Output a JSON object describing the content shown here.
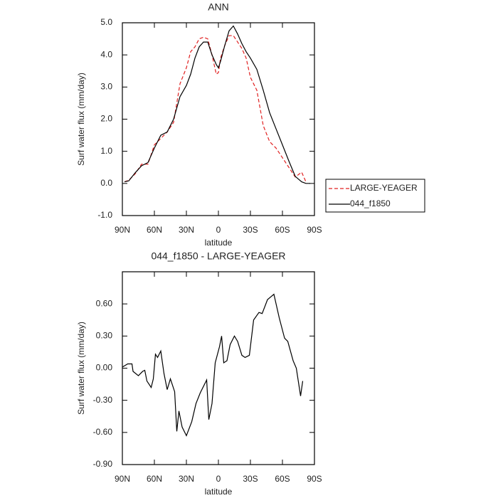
{
  "chart_data": [
    {
      "type": "line",
      "title": "ANN",
      "xlabel": "latitude",
      "ylabel": "Surf water flux (mm/day)",
      "x": [
        88,
        84,
        78,
        72,
        66,
        60,
        54,
        48,
        42,
        36,
        30,
        26,
        22,
        18,
        14,
        10,
        6,
        2,
        0,
        -2,
        -6,
        -10,
        -14,
        -18,
        -22,
        -26,
        -30,
        -36,
        -42,
        -48,
        -54,
        -60,
        -66,
        -72,
        -78,
        -82,
        -86
      ],
      "series": [
        {
          "name": "LARGE-YEAGER",
          "color": "#e02020",
          "dash": true,
          "values": [
            0.05,
            0.1,
            0.3,
            0.6,
            0.6,
            1.2,
            1.4,
            1.6,
            1.9,
            3.1,
            3.6,
            4.1,
            4.25,
            4.5,
            4.55,
            4.5,
            4.0,
            3.4,
            3.45,
            3.9,
            4.3,
            4.6,
            4.6,
            4.4,
            4.2,
            3.9,
            3.3,
            2.9,
            1.8,
            1.3,
            1.1,
            0.8,
            0.5,
            0.2,
            0.35,
            0.05,
            null
          ]
        },
        {
          "name": "044_f1850",
          "color": "#000000",
          "dash": false,
          "values": [
            0.05,
            0.08,
            0.33,
            0.55,
            0.65,
            1.1,
            1.5,
            1.6,
            2.0,
            2.7,
            3.05,
            3.4,
            3.9,
            4.25,
            4.4,
            4.4,
            4.0,
            3.7,
            3.6,
            3.8,
            4.3,
            4.75,
            4.9,
            4.65,
            4.35,
            4.1,
            3.9,
            3.55,
            2.9,
            2.2,
            1.7,
            1.2,
            0.7,
            0.22,
            0.05,
            0.0,
            0.0
          ]
        }
      ],
      "xlim": [
        90,
        -90
      ],
      "xticks": [
        {
          "value": 90,
          "label": "90N"
        },
        {
          "value": 60,
          "label": "60N"
        },
        {
          "value": 30,
          "label": "30N"
        },
        0,
        {
          "value": -30,
          "label": "30S"
        },
        {
          "value": -60,
          "label": "60S"
        },
        {
          "value": -90,
          "label": "90S"
        }
      ],
      "ylim": [
        -1,
        5
      ],
      "yticks": [
        {
          "value": -1,
          "label": "-1.0"
        },
        {
          "value": 0,
          "label": "0.0"
        },
        {
          "value": 1,
          "label": "1.0"
        },
        {
          "value": 2,
          "label": "2.0"
        },
        {
          "value": 3,
          "label": "3.0"
        },
        {
          "value": 4,
          "label": "4.0"
        },
        {
          "value": 5,
          "label": "5.0"
        }
      ],
      "legend": "right"
    },
    {
      "type": "line",
      "title": "044_f1850 - LARGE-YEAGER",
      "xlabel": "latitude",
      "ylabel": "Surf water flux (mm/day)",
      "x": [
        90,
        85,
        81,
        80,
        75,
        71,
        69,
        67,
        63,
        61,
        59,
        57,
        54,
        51,
        48,
        45,
        41,
        39,
        37,
        34,
        30,
        25,
        21,
        17,
        11,
        9,
        6,
        3,
        -1,
        -3,
        -5,
        -8,
        -11,
        -15,
        -18,
        -22,
        -25,
        -29,
        -33,
        -38,
        -41,
        -46,
        -52,
        -57,
        -62,
        -65,
        -70,
        -73,
        -77,
        -79
      ],
      "color": "#000000",
      "values": [
        0.01,
        0.04,
        0.04,
        -0.03,
        -0.07,
        -0.03,
        -0.02,
        -0.12,
        -0.18,
        -0.1,
        0.13,
        0.1,
        0.16,
        -0.05,
        -0.2,
        -0.1,
        -0.22,
        -0.59,
        -0.4,
        -0.55,
        -0.63,
        -0.5,
        -0.33,
        -0.23,
        -0.11,
        -0.48,
        -0.33,
        0.05,
        0.2,
        0.3,
        0.05,
        0.07,
        0.22,
        0.3,
        0.25,
        0.12,
        0.1,
        0.12,
        0.45,
        0.52,
        0.51,
        0.64,
        0.69,
        0.47,
        0.28,
        0.25,
        0.07,
        0.0,
        -0.26,
        -0.12
      ],
      "xlim": [
        90,
        -90
      ],
      "xticks": [
        {
          "value": 90,
          "label": "90N"
        },
        {
          "value": 60,
          "label": "60N"
        },
        {
          "value": 30,
          "label": "30N"
        },
        0,
        {
          "value": -30,
          "label": "30S"
        },
        {
          "value": -60,
          "label": "60S"
        },
        {
          "value": -90,
          "label": "90S"
        }
      ],
      "ylim": [
        -0.9,
        0.9
      ],
      "yticks": [
        {
          "value": -0.9,
          "label": "-0.90"
        },
        {
          "value": -0.6,
          "label": "-0.60"
        },
        {
          "value": -0.3,
          "label": "-0.30"
        },
        {
          "value": 0,
          "label": "0.00"
        },
        {
          "value": 0.3,
          "label": "0.30"
        },
        {
          "value": 0.6,
          "label": "0.60"
        }
      ]
    }
  ]
}
